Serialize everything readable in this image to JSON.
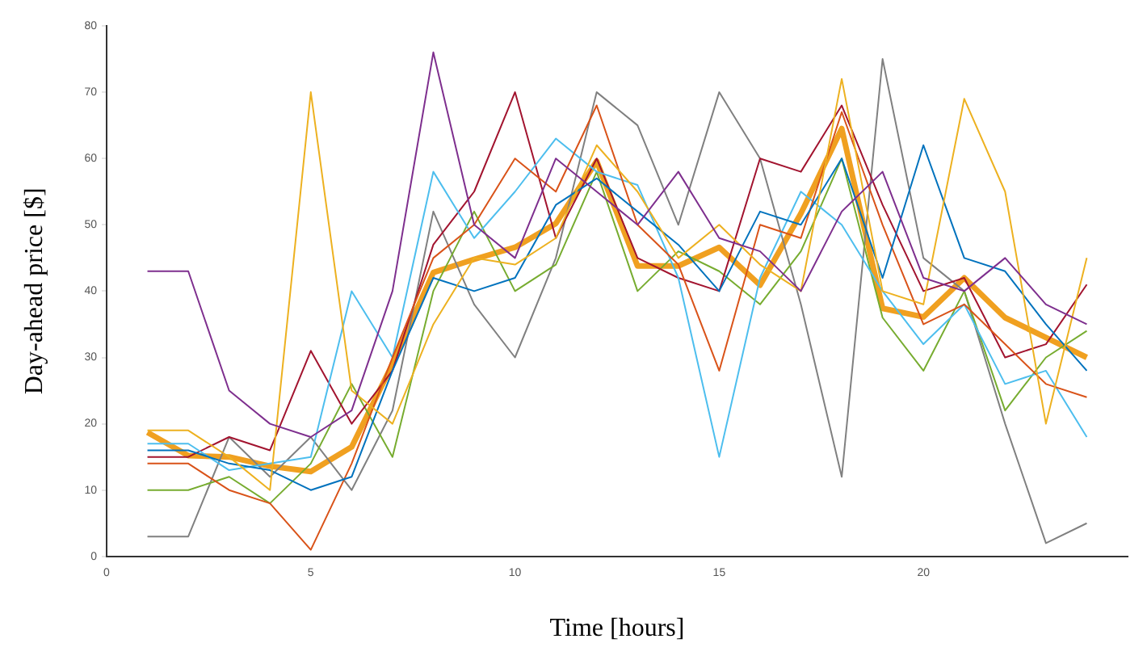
{
  "chart_data": {
    "type": "line",
    "xlabel": "Time [hours]",
    "ylabel": "Day-ahead price [$]",
    "x": [
      1,
      2,
      3,
      4,
      5,
      6,
      7,
      8,
      9,
      10,
      11,
      12,
      13,
      14,
      15,
      16,
      17,
      18,
      19,
      20,
      21,
      22,
      23,
      24
    ],
    "xlim": [
      0,
      25
    ],
    "xticks": [
      0,
      5,
      10,
      15,
      20
    ],
    "ylim": [
      0,
      80
    ],
    "yticks": [
      0,
      10,
      20,
      30,
      40,
      50,
      60,
      70,
      80
    ],
    "grid": false,
    "legend": false,
    "marker": "none",
    "line_style": "solid",
    "series": [
      {
        "color": "#7e2f8e",
        "values": [
          43,
          43,
          25,
          20,
          18,
          22,
          40,
          76,
          50,
          45,
          60,
          55,
          50,
          58,
          48,
          46,
          40,
          52,
          58,
          42,
          40,
          45,
          38,
          35
        ]
      },
      {
        "color": "#edb120",
        "values": [
          19,
          19,
          15,
          10,
          70,
          25,
          20,
          35,
          45,
          44,
          48,
          62,
          55,
          45,
          50,
          44,
          40,
          72,
          40,
          38,
          69,
          55,
          20,
          45
        ]
      },
      {
        "color": "#0072bd",
        "values": [
          16,
          16,
          14,
          13,
          10,
          12,
          28,
          42,
          40,
          42,
          53,
          57,
          52,
          47,
          40,
          52,
          50,
          60,
          42,
          62,
          45,
          43,
          35,
          28
        ]
      },
      {
        "color": "#d95319",
        "values": [
          14,
          14,
          10,
          8,
          1,
          14,
          30,
          45,
          50,
          60,
          55,
          68,
          50,
          44,
          28,
          50,
          48,
          67,
          50,
          35,
          38,
          32,
          26,
          24
        ]
      },
      {
        "color": "#4dbeee",
        "values": [
          17,
          17,
          13,
          14,
          15,
          40,
          30,
          58,
          48,
          55,
          63,
          58,
          56,
          42,
          15,
          42,
          55,
          50,
          40,
          32,
          38,
          26,
          28,
          18
        ]
      },
      {
        "color": "#a2142f",
        "values": [
          15,
          15,
          18,
          16,
          31,
          20,
          28,
          47,
          55,
          70,
          48,
          60,
          45,
          42,
          40,
          60,
          58,
          68,
          53,
          40,
          42,
          30,
          32,
          41
        ]
      },
      {
        "color": "#77ac30",
        "values": [
          10,
          10,
          12,
          8,
          14,
          26,
          15,
          40,
          52,
          40,
          44,
          58,
          40,
          46,
          43,
          38,
          46,
          60,
          36,
          28,
          40,
          22,
          30,
          34
        ]
      },
      {
        "color": "#808080",
        "values": [
          3,
          3,
          18,
          12,
          18,
          10,
          22,
          52,
          38,
          30,
          45,
          70,
          65,
          50,
          70,
          60,
          38,
          12,
          75,
          45,
          40,
          20,
          2,
          5
        ]
      },
      {
        "color": "#f0a020",
        "values": [
          18.7,
          15.2,
          15,
          13.6,
          12.8,
          16.5,
          29,
          42.8,
          44.8,
          46.6,
          50.2,
          59.6,
          43.8,
          43.8,
          46.6,
          40.9,
          51.7,
          64.5,
          37.4,
          36.1,
          42,
          36,
          33,
          30
        ]
      }
    ]
  }
}
